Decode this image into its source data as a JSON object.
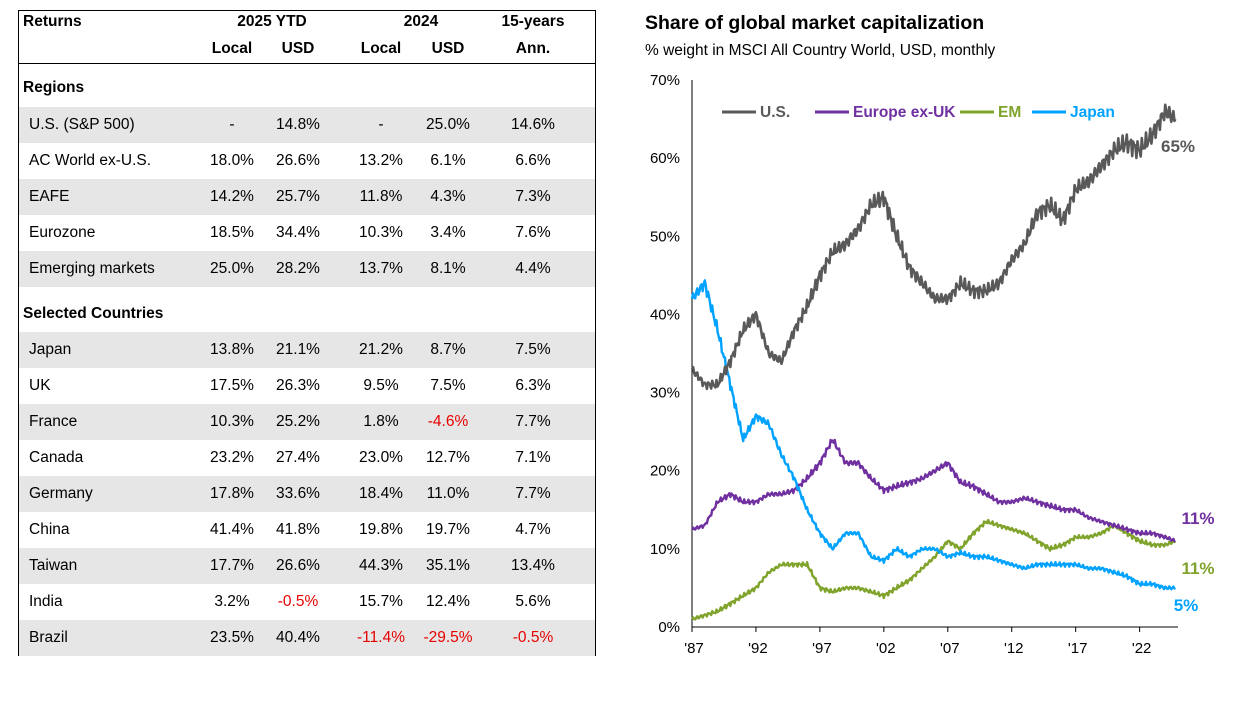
{
  "table": {
    "header": {
      "returns": "Returns",
      "ytd": "2025 YTD",
      "y2024": "2024",
      "fifteen": "15-years",
      "local": "Local",
      "usd": "USD",
      "ann": "Ann."
    },
    "regions_title": "Regions",
    "regions": [
      {
        "name": "U.S. (S&P 500)",
        "ytd_local": "-",
        "ytd_usd": "14.8%",
        "y24_local": "-",
        "y24_usd": "25.0%",
        "ann15": "14.6%"
      },
      {
        "name": "AC World ex-U.S.",
        "ytd_local": "18.0%",
        "ytd_usd": "26.6%",
        "y24_local": "13.2%",
        "y24_usd": "6.1%",
        "ann15": "6.6%"
      },
      {
        "name": "EAFE",
        "ytd_local": "14.2%",
        "ytd_usd": "25.7%",
        "y24_local": "11.8%",
        "y24_usd": "4.3%",
        "ann15": "7.3%"
      },
      {
        "name": "Eurozone",
        "ytd_local": "18.5%",
        "ytd_usd": "34.4%",
        "y24_local": "10.3%",
        "y24_usd": "3.4%",
        "ann15": "7.6%"
      },
      {
        "name": "Emerging markets",
        "ytd_local": "25.0%",
        "ytd_usd": "28.2%",
        "y24_local": "13.7%",
        "y24_usd": "8.1%",
        "ann15": "4.4%"
      }
    ],
    "countries_title": "Selected Countries",
    "countries": [
      {
        "name": "Japan",
        "ytd_local": "13.8%",
        "ytd_usd": "21.1%",
        "y24_local": "21.2%",
        "y24_usd": "8.7%",
        "ann15": "7.5%"
      },
      {
        "name": "UK",
        "ytd_local": "17.5%",
        "ytd_usd": "26.3%",
        "y24_local": "9.5%",
        "y24_usd": "7.5%",
        "ann15": "6.3%"
      },
      {
        "name": "France",
        "ytd_local": "10.3%",
        "ytd_usd": "25.2%",
        "y24_local": "1.8%",
        "y24_usd": "-4.6%",
        "ann15": "7.7%"
      },
      {
        "name": "Canada",
        "ytd_local": "23.2%",
        "ytd_usd": "27.4%",
        "y24_local": "23.0%",
        "y24_usd": "12.7%",
        "ann15": "7.1%"
      },
      {
        "name": "Germany",
        "ytd_local": "17.8%",
        "ytd_usd": "33.6%",
        "y24_local": "18.4%",
        "y24_usd": "11.0%",
        "ann15": "7.7%"
      },
      {
        "name": "China",
        "ytd_local": "41.4%",
        "ytd_usd": "41.8%",
        "y24_local": "19.8%",
        "y24_usd": "19.7%",
        "ann15": "4.7%"
      },
      {
        "name": "Taiwan",
        "ytd_local": "17.7%",
        "ytd_usd": "26.6%",
        "y24_local": "44.3%",
        "y24_usd": "35.1%",
        "ann15": "13.4%"
      },
      {
        "name": "India",
        "ytd_local": "3.2%",
        "ytd_usd": "-0.5%",
        "y24_local": "15.7%",
        "y24_usd": "12.4%",
        "ann15": "5.6%"
      },
      {
        "name": "Brazil",
        "ytd_local": "23.5%",
        "ytd_usd": "40.4%",
        "y24_local": "-11.4%",
        "y24_usd": "-29.5%",
        "ann15": "-0.5%"
      }
    ]
  },
  "colors": {
    "us": "#595959",
    "europe": "#7030a0",
    "em": "#7fa32b",
    "japan": "#00a2ff",
    "negative": "#e60000",
    "shade": "#e6e6e6"
  },
  "chart_data": {
    "type": "line",
    "title": "Share of global market capitalization",
    "subtitle": "% weight in MSCI All Country World, USD, monthly",
    "xlabel": "",
    "ylabel": "",
    "xlim": [
      1987,
      2025
    ],
    "ylim": [
      0,
      70
    ],
    "yticks": [
      0,
      10,
      20,
      30,
      40,
      50,
      60,
      70
    ],
    "ytick_labels": [
      "0%",
      "10%",
      "20%",
      "30%",
      "40%",
      "50%",
      "60%",
      "70%"
    ],
    "xticks": [
      1987,
      1992,
      1997,
      2002,
      2007,
      2012,
      2017,
      2022
    ],
    "xtick_labels": [
      "'87",
      "'92",
      "'97",
      "'02",
      "'07",
      "'12",
      "'17",
      "'22"
    ],
    "legend": [
      "U.S.",
      "Europe ex-UK",
      "EM",
      "Japan"
    ],
    "legend_position": "top",
    "end_labels": {
      "us": "65%",
      "europe": "11%",
      "em": "11%",
      "japan": "5%"
    },
    "series": [
      {
        "key": "us",
        "name": "U.S.",
        "x": [
          1987,
          1988,
          1989,
          1990,
          1991,
          1992,
          1993,
          1994,
          1995,
          1996,
          1997,
          1998,
          1999,
          2000,
          2001,
          2002,
          2003,
          2004,
          2005,
          2006,
          2007,
          2008,
          2009,
          2010,
          2011,
          2012,
          2013,
          2014,
          2015,
          2016,
          2017,
          2018,
          2019,
          2020,
          2021,
          2022,
          2023,
          2024,
          2024.8
        ],
        "values": [
          33,
          31,
          31,
          34,
          38,
          40,
          35,
          34,
          38,
          41,
          45,
          48,
          49,
          51,
          54,
          55,
          50,
          46,
          44,
          42,
          42,
          44,
          43,
          43,
          44,
          47,
          49,
          53,
          54,
          52,
          56,
          57,
          59,
          61,
          62,
          61,
          63,
          66,
          65
        ]
      },
      {
        "key": "europe",
        "name": "Europe ex-UK",
        "x": [
          1987,
          1988,
          1989,
          1990,
          1991,
          1992,
          1993,
          1994,
          1995,
          1996,
          1997,
          1998,
          1999,
          2000,
          2001,
          2002,
          2003,
          2004,
          2005,
          2006,
          2007,
          2008,
          2009,
          2010,
          2011,
          2012,
          2013,
          2014,
          2015,
          2016,
          2017,
          2018,
          2019,
          2020,
          2021,
          2022,
          2023,
          2024,
          2024.8
        ],
        "values": [
          12.5,
          13,
          16,
          17,
          16,
          16,
          17,
          17,
          17.5,
          19,
          21,
          24,
          21,
          21,
          19,
          17.5,
          18,
          18.5,
          19,
          20,
          21,
          18.5,
          18,
          17,
          16,
          16,
          16.5,
          16,
          15.5,
          15,
          15,
          14,
          13.5,
          13,
          12.5,
          12,
          12,
          11.5,
          11
        ]
      },
      {
        "key": "em",
        "name": "EM",
        "x": [
          1987,
          1988,
          1989,
          1990,
          1991,
          1992,
          1993,
          1994,
          1995,
          1996,
          1997,
          1998,
          1999,
          2000,
          2001,
          2002,
          2003,
          2004,
          2005,
          2006,
          2007,
          2008,
          2009,
          2010,
          2011,
          2012,
          2013,
          2014,
          2015,
          2016,
          2017,
          2018,
          2019,
          2020,
          2021,
          2022,
          2023,
          2024,
          2024.8
        ],
        "values": [
          1,
          1.5,
          2,
          3,
          4,
          5,
          7,
          8,
          8,
          8,
          5,
          4.5,
          5,
          5,
          4.5,
          4,
          5,
          6,
          7.5,
          9,
          11,
          10,
          12,
          13.5,
          13,
          12.5,
          12,
          11,
          10,
          10.5,
          11.5,
          11.5,
          12,
          13,
          12,
          11,
          10.5,
          10.5,
          11
        ]
      },
      {
        "key": "japan",
        "name": "Japan",
        "x": [
          1987,
          1988,
          1989,
          1990,
          1991,
          1992,
          1993,
          1994,
          1995,
          1996,
          1997,
          1998,
          1999,
          2000,
          2001,
          2002,
          2003,
          2004,
          2005,
          2006,
          2007,
          2008,
          2009,
          2010,
          2011,
          2012,
          2013,
          2014,
          2015,
          2016,
          2017,
          2018,
          2019,
          2020,
          2021,
          2022,
          2023,
          2024,
          2024.8
        ],
        "values": [
          42,
          44,
          38,
          31,
          24,
          27,
          26,
          22,
          19,
          15,
          12,
          10,
          12,
          12,
          9,
          8.5,
          10,
          9,
          10,
          10,
          9,
          9.5,
          9,
          9,
          8.5,
          8,
          7.5,
          8,
          8,
          8,
          8,
          7.5,
          7.5,
          7,
          6.5,
          5.5,
          5.5,
          5,
          5
        ]
      }
    ]
  }
}
